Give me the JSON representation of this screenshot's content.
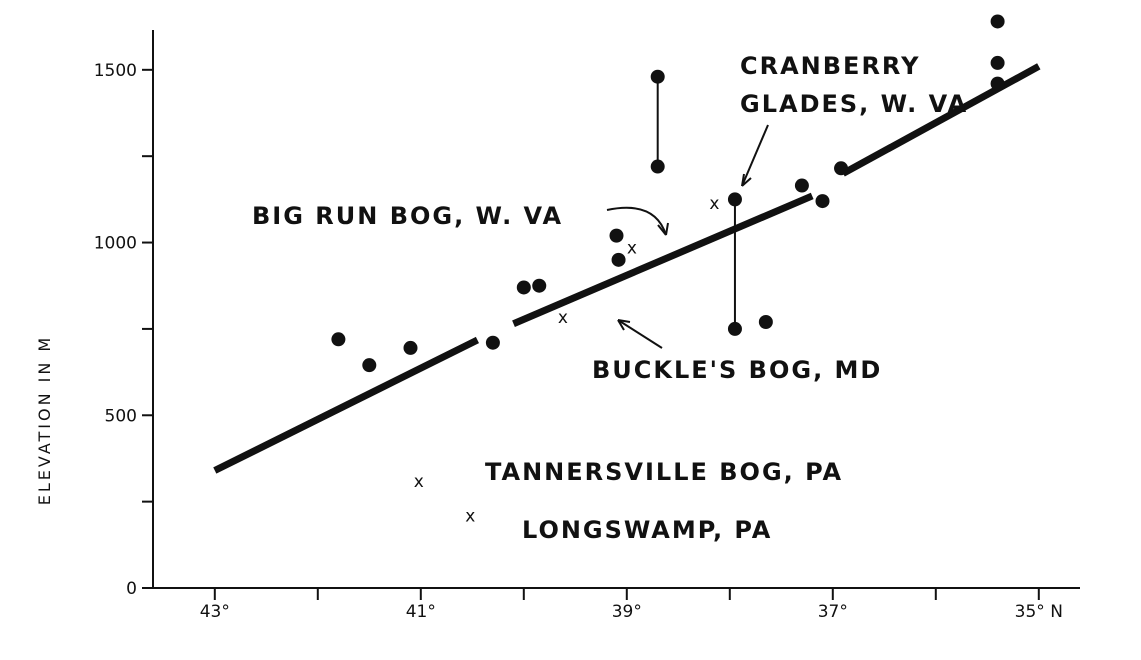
{
  "chart_data": {
    "type": "scatter",
    "ylabel": "ELEVATION IN M",
    "x_unit": "°N",
    "xlim": [
      43.6,
      34.6
    ],
    "ylim": [
      0,
      1650
    ],
    "x_ticks": [
      {
        "value": 43,
        "label": "43°"
      },
      {
        "value": 42,
        "label": ""
      },
      {
        "value": 41,
        "label": "41°"
      },
      {
        "value": 40,
        "label": ""
      },
      {
        "value": 39,
        "label": "39°"
      },
      {
        "value": 38,
        "label": ""
      },
      {
        "value": 37,
        "label": "37°"
      },
      {
        "value": 36,
        "label": ""
      },
      {
        "value": 35,
        "label": "35° N"
      }
    ],
    "y_ticks": [
      {
        "value": 0,
        "label": "0"
      },
      {
        "value": 250,
        "label": ""
      },
      {
        "value": 500,
        "label": "500"
      },
      {
        "value": 750,
        "label": ""
      },
      {
        "value": 1000,
        "label": "1000"
      },
      {
        "value": 1250,
        "label": ""
      },
      {
        "value": 1500,
        "label": "1500"
      }
    ],
    "points": [
      {
        "lat": 41.8,
        "elev": 720
      },
      {
        "lat": 41.5,
        "elev": 645
      },
      {
        "lat": 41.1,
        "elev": 695
      },
      {
        "lat": 40.3,
        "elev": 710
      },
      {
        "lat": 40.0,
        "elev": 870
      },
      {
        "lat": 39.85,
        "elev": 875
      },
      {
        "lat": 39.1,
        "elev": 1020
      },
      {
        "lat": 39.08,
        "elev": 950
      },
      {
        "lat": 38.7,
        "elev": 1480
      },
      {
        "lat": 38.7,
        "elev": 1220
      },
      {
        "lat": 37.95,
        "elev": 1125
      },
      {
        "lat": 37.95,
        "elev": 750
      },
      {
        "lat": 37.65,
        "elev": 770
      },
      {
        "lat": 37.3,
        "elev": 1165
      },
      {
        "lat": 37.1,
        "elev": 1120
      },
      {
        "lat": 36.92,
        "elev": 1215
      },
      {
        "lat": 35.4,
        "elev": 1640
      },
      {
        "lat": 35.4,
        "elev": 1520
      },
      {
        "lat": 35.4,
        "elev": 1460
      }
    ],
    "range_links": [
      {
        "lat": 38.7,
        "from": 1220,
        "to": 1480
      },
      {
        "lat": 37.95,
        "from": 750,
        "to": 1125
      }
    ],
    "trend_segments": [
      {
        "from": [
          43.0,
          340
        ],
        "to": [
          40.45,
          718
        ]
      },
      {
        "from": [
          40.1,
          765
        ],
        "to": [
          37.2,
          1135
        ]
      },
      {
        "from": [
          36.9,
          1200
        ],
        "to": [
          35.0,
          1510
        ]
      }
    ],
    "bogs": [
      {
        "name": "CRANBERRY GLADES, W. VA",
        "lat": 38.15,
        "elev": 1115
      },
      {
        "name": "BIG RUN BOG, W. VA",
        "lat": 38.95,
        "elev": 985
      },
      {
        "name": "BUCKLE'S BOG, MD",
        "lat": 39.62,
        "elev": 785
      },
      {
        "name": "TANNERSVILLE BOG, PA",
        "lat": 41.02,
        "elev": 310
      },
      {
        "name": "LONGSWAMP, PA",
        "lat": 40.52,
        "elev": 210
      }
    ],
    "annotations": {
      "cranberry_line1": "CRANBERRY",
      "cranberry_line2": "GLADES, W. VA",
      "bigrun": "BIG RUN BOG, W. VA",
      "buckles": "BUCKLE'S BOG, MD",
      "tannersville": "TANNERSVILLE  BOG, PA",
      "longswamp": "LONGSWAMP, PA"
    },
    "marker_glyph": "x"
  }
}
